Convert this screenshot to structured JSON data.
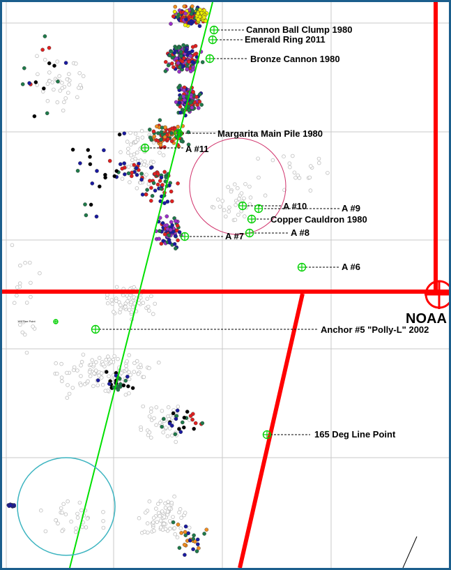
{
  "map": {
    "background": "#ffffff",
    "frame_color": "#1b5e8c",
    "grid_color": "#c8c8c8",
    "boundary_color": "#ff0000",
    "track_color": "#00e000",
    "circle_pink_color": "#d0306a",
    "circle_cyan_color": "#3cb4c0",
    "region_label": "NOAA",
    "tiny_note": "165 Line Point"
  },
  "targets": [
    {
      "id": "cannon-ball-clump",
      "label": "Cannon Ball Clump 1980"
    },
    {
      "id": "emerald-ring",
      "label": "Emerald Ring 2011"
    },
    {
      "id": "bronze-cannon",
      "label": "Bronze Cannon 1980"
    },
    {
      "id": "margarita-main-pile",
      "label": "Margarita Main Pile 1980"
    },
    {
      "id": "anchor-11",
      "label": "A #11"
    },
    {
      "id": "anchor-10",
      "label": "A #10"
    },
    {
      "id": "anchor-9",
      "label": "A #9"
    },
    {
      "id": "copper-cauldron",
      "label": "Copper Cauldron 1980"
    },
    {
      "id": "anchor-8",
      "label": "A #8"
    },
    {
      "id": "anchor-7",
      "label": "A #7"
    },
    {
      "id": "anchor-6",
      "label": "A #6"
    },
    {
      "id": "anchor-5",
      "label": "Anchor #5 \"Polly-L\" 2002"
    },
    {
      "id": "deg-165-line-point",
      "label": "165 Deg Line Point"
    }
  ],
  "point_colors": {
    "gray": "#bdbdbd",
    "red": "#e02020",
    "green": "#1f7a4a",
    "blue": "#1a1aa0",
    "purple": "#9a30c8",
    "orange": "#f08c20",
    "yellow": "#f0f000",
    "black": "#000000"
  }
}
